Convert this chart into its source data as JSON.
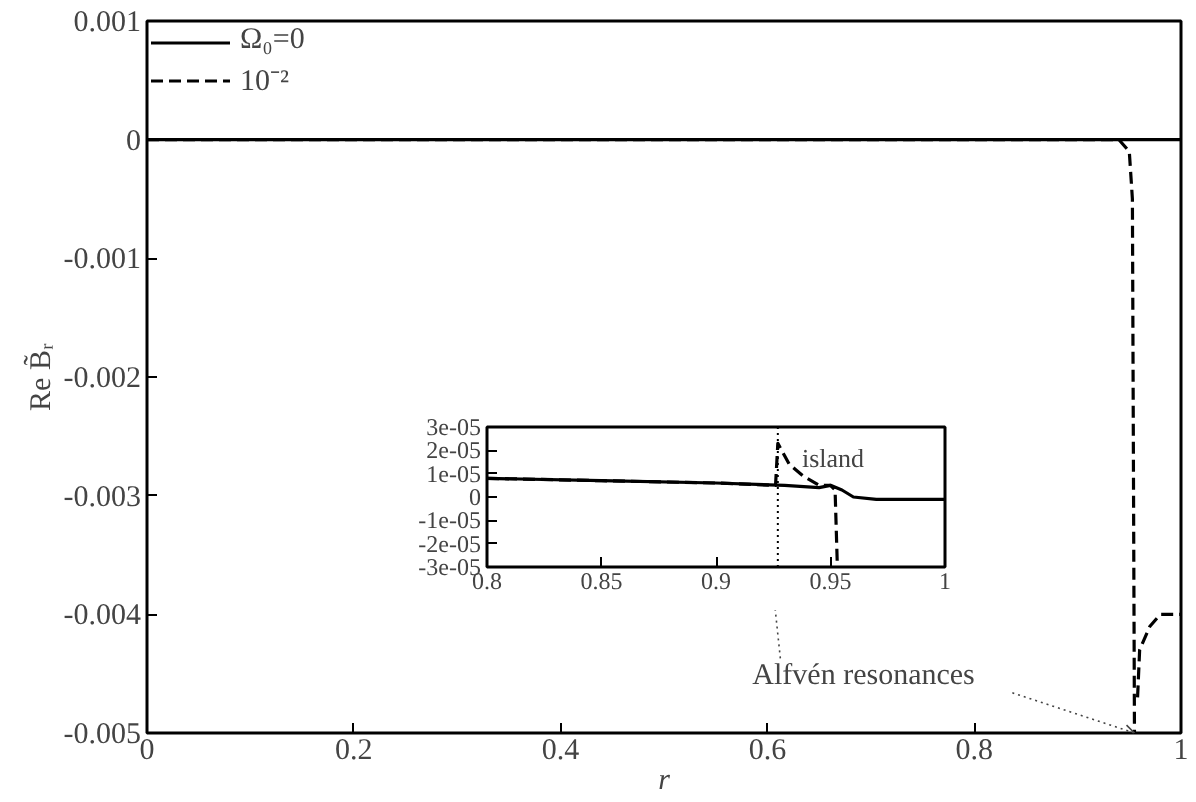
{
  "chart_data": [
    {
      "type": "line",
      "xlabel": "r",
      "ylabel": "Re B̃ᵣ",
      "xlim": [
        0,
        1
      ],
      "ylim": [
        -0.005,
        0.001
      ],
      "xticks": [
        0,
        0.2,
        0.4,
        0.6,
        0.8,
        1
      ],
      "yticks": [
        0.001,
        0,
        -0.001,
        -0.002,
        -0.003,
        -0.004,
        -0.005
      ],
      "legend": "top left",
      "grid": false,
      "series": [
        {
          "name": "Ω₀=0",
          "color": "#000000",
          "line_style": "solid",
          "x": [
            0,
            0.5,
            0.9,
            0.95,
            0.96,
            1
          ],
          "values": [
            0,
            0,
            0,
            0,
            0,
            0
          ]
        },
        {
          "name": "10⁻²",
          "color": "#000000",
          "line_style": "dashed",
          "x": [
            0,
            0.9,
            0.94,
            0.95,
            0.953,
            0.955,
            0.956,
            0.958,
            0.96,
            0.97,
            0.98,
            1
          ],
          "values": [
            0,
            0,
            0,
            -0.0001,
            -0.0005,
            -0.005,
            null,
            -0.0047,
            -0.0043,
            -0.0041,
            -0.004,
            -0.004
          ]
        }
      ],
      "annotations": [
        {
          "text": "Alfvén resonances",
          "x": 0.955,
          "y": -0.005
        }
      ]
    },
    {
      "type": "line",
      "xlim": [
        0.8,
        1
      ],
      "ylim": [
        -3e-05,
        3e-05
      ],
      "xticks": [
        0.8,
        0.85,
        0.9,
        0.95,
        1
      ],
      "yticks": [
        {
          "value": 3e-05,
          "label": "3e-05"
        },
        {
          "value": 2e-05,
          "label": "2e-05"
        },
        {
          "value": 1e-05,
          "label": "1e-05"
        },
        0,
        {
          "value": -1e-05,
          "label": "-1e-05"
        },
        {
          "value": -2e-05,
          "label": "-2e-05"
        },
        {
          "value": -3e-05,
          "label": "-3e-05"
        }
      ],
      "grid": false,
      "series": [
        {
          "color": "#000000",
          "line_style": "solid",
          "x": [
            0.8,
            0.85,
            0.9,
            0.93,
            0.945,
            0.95,
            0.955,
            0.96,
            0.97,
            0.98,
            1
          ],
          "values": [
            8e-06,
            7e-06,
            6e-06,
            5e-06,
            4e-06,
            5e-06,
            3e-06,
            0,
            -1e-06,
            -1e-06,
            -1e-06
          ]
        },
        {
          "color": "#000000",
          "line_style": "dashed",
          "x": [
            0.8,
            0.85,
            0.9,
            0.926,
            0.927,
            0.932,
            0.938,
            0.945,
            0.95,
            0.952,
            0.953
          ],
          "values": [
            8e-06,
            7e-06,
            6e-06,
            5e-06,
            2.3e-05,
            1.4e-05,
            9e-06,
            5e-06,
            5e-06,
            3e-06,
            -3e-05
          ]
        }
      ],
      "ref_lines": [
        {
          "axis": "x",
          "value": 0.927,
          "line_style": "dotted"
        }
      ],
      "annotations": [
        {
          "text": "island",
          "x": 0.948,
          "y": 5e-06
        }
      ]
    }
  ]
}
